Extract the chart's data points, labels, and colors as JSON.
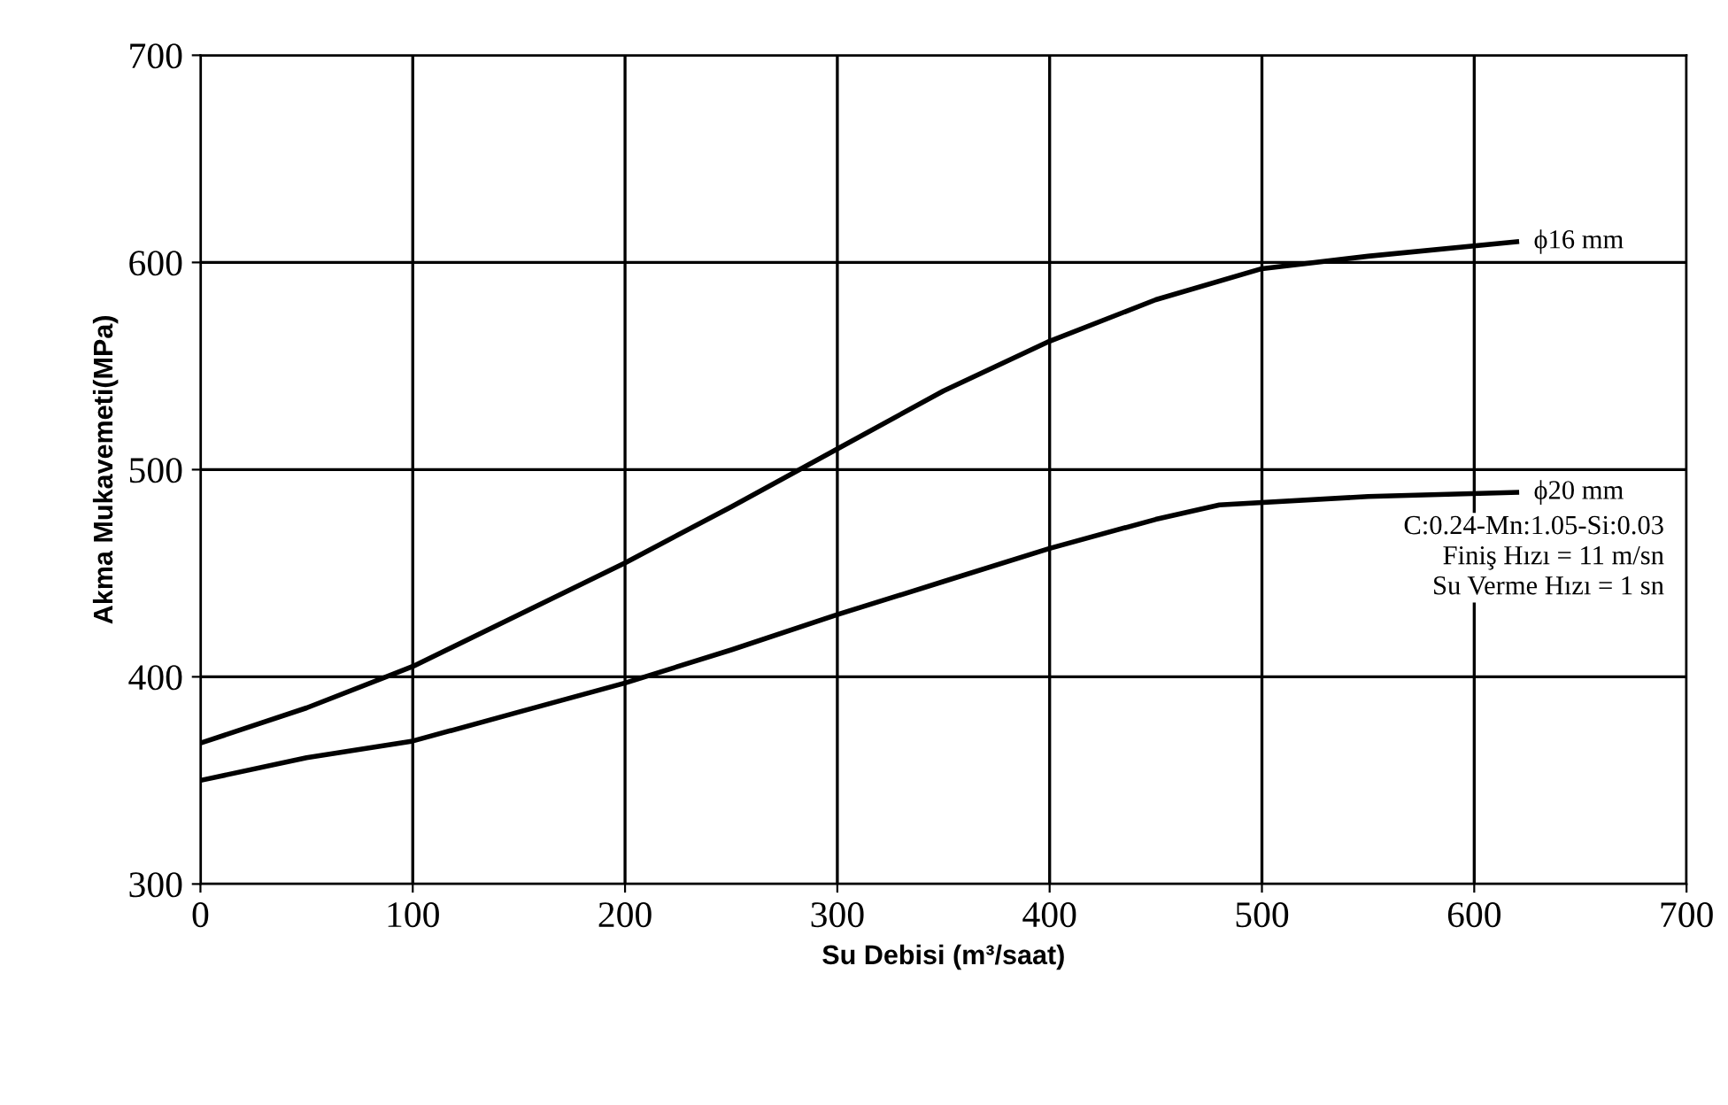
{
  "chart_data": {
    "type": "line",
    "xlabel": "Su Debisi (m³/saat)",
    "ylabel": "Akma Mukavemeti(MPa)",
    "xlim": [
      0,
      700
    ],
    "ylim": [
      300,
      700
    ],
    "xticks": [
      0,
      100,
      200,
      300,
      400,
      500,
      600,
      700
    ],
    "yticks": [
      300,
      400,
      500,
      600,
      700
    ],
    "grid": true,
    "marker": "none",
    "line_style": "solid",
    "series": [
      {
        "name": "ϕ16 mm",
        "color": "#000000",
        "x": [
          0,
          50,
          100,
          150,
          200,
          250,
          300,
          350,
          400,
          450,
          500,
          550,
          620
        ],
        "values": [
          368,
          385,
          405,
          430,
          455,
          482,
          510,
          538,
          562,
          582,
          597,
          603,
          610
        ]
      },
      {
        "name": "ϕ20 mm",
        "color": "#000000",
        "x": [
          0,
          50,
          100,
          150,
          200,
          250,
          300,
          350,
          400,
          450,
          480,
          550,
          620
        ],
        "values": [
          350,
          361,
          369,
          383,
          397,
          413,
          430,
          446,
          462,
          476,
          483,
          487,
          489
        ]
      }
    ],
    "annotations": [
      "C:0.24-Mn:1.05-Si:0.03\nFiniş Hızı = 11 m/sn\nSu Verme Hızı = 1 sn"
    ]
  }
}
